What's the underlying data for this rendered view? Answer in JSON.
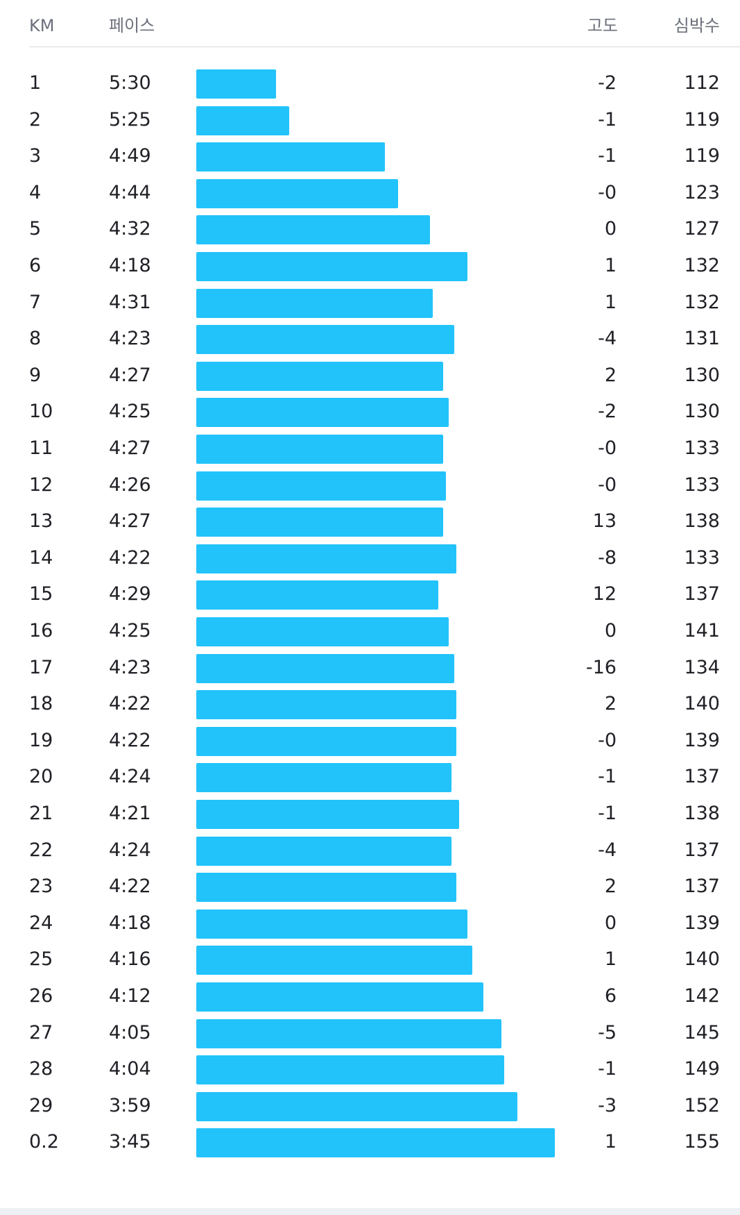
{
  "columns": {
    "km": "KM",
    "pace": "페이스",
    "elevation": "고도",
    "heart_rate": "심박수"
  },
  "bar_color": "#22c3fb",
  "splits": [
    {
      "km": "1",
      "pace": "5:30",
      "pace_sec": 330,
      "elevation": "-2",
      "heart_rate": "112"
    },
    {
      "km": "2",
      "pace": "5:25",
      "pace_sec": 325,
      "elevation": "-1",
      "heart_rate": "119"
    },
    {
      "km": "3",
      "pace": "4:49",
      "pace_sec": 289,
      "elevation": "-1",
      "heart_rate": "119"
    },
    {
      "km": "4",
      "pace": "4:44",
      "pace_sec": 284,
      "elevation": "-0",
      "heart_rate": "123"
    },
    {
      "km": "5",
      "pace": "4:32",
      "pace_sec": 272,
      "elevation": "0",
      "heart_rate": "127"
    },
    {
      "km": "6",
      "pace": "4:18",
      "pace_sec": 258,
      "elevation": "1",
      "heart_rate": "132"
    },
    {
      "km": "7",
      "pace": "4:31",
      "pace_sec": 271,
      "elevation": "1",
      "heart_rate": "132"
    },
    {
      "km": "8",
      "pace": "4:23",
      "pace_sec": 263,
      "elevation": "-4",
      "heart_rate": "131"
    },
    {
      "km": "9",
      "pace": "4:27",
      "pace_sec": 267,
      "elevation": "2",
      "heart_rate": "130"
    },
    {
      "km": "10",
      "pace": "4:25",
      "pace_sec": 265,
      "elevation": "-2",
      "heart_rate": "130"
    },
    {
      "km": "11",
      "pace": "4:27",
      "pace_sec": 267,
      "elevation": "-0",
      "heart_rate": "133"
    },
    {
      "km": "12",
      "pace": "4:26",
      "pace_sec": 266,
      "elevation": "-0",
      "heart_rate": "133"
    },
    {
      "km": "13",
      "pace": "4:27",
      "pace_sec": 267,
      "elevation": "13",
      "heart_rate": "138"
    },
    {
      "km": "14",
      "pace": "4:22",
      "pace_sec": 262,
      "elevation": "-8",
      "heart_rate": "133"
    },
    {
      "km": "15",
      "pace": "4:29",
      "pace_sec": 269,
      "elevation": "12",
      "heart_rate": "137"
    },
    {
      "km": "16",
      "pace": "4:25",
      "pace_sec": 265,
      "elevation": "0",
      "heart_rate": "141"
    },
    {
      "km": "17",
      "pace": "4:23",
      "pace_sec": 263,
      "elevation": "-16",
      "heart_rate": "134"
    },
    {
      "km": "18",
      "pace": "4:22",
      "pace_sec": 262,
      "elevation": "2",
      "heart_rate": "140"
    },
    {
      "km": "19",
      "pace": "4:22",
      "pace_sec": 262,
      "elevation": "-0",
      "heart_rate": "139"
    },
    {
      "km": "20",
      "pace": "4:24",
      "pace_sec": 264,
      "elevation": "-1",
      "heart_rate": "137"
    },
    {
      "km": "21",
      "pace": "4:21",
      "pace_sec": 261,
      "elevation": "-1",
      "heart_rate": "138"
    },
    {
      "km": "22",
      "pace": "4:24",
      "pace_sec": 264,
      "elevation": "-4",
      "heart_rate": "137"
    },
    {
      "km": "23",
      "pace": "4:22",
      "pace_sec": 262,
      "elevation": "2",
      "heart_rate": "137"
    },
    {
      "km": "24",
      "pace": "4:18",
      "pace_sec": 258,
      "elevation": "0",
      "heart_rate": "139"
    },
    {
      "km": "25",
      "pace": "4:16",
      "pace_sec": 256,
      "elevation": "1",
      "heart_rate": "140"
    },
    {
      "km": "26",
      "pace": "4:12",
      "pace_sec": 252,
      "elevation": "6",
      "heart_rate": "142"
    },
    {
      "km": "27",
      "pace": "4:05",
      "pace_sec": 245,
      "elevation": "-5",
      "heart_rate": "145"
    },
    {
      "km": "28",
      "pace": "4:04",
      "pace_sec": 244,
      "elevation": "-1",
      "heart_rate": "149"
    },
    {
      "km": "29",
      "pace": "3:59",
      "pace_sec": 239,
      "elevation": "-3",
      "heart_rate": "152"
    },
    {
      "km": "0.2",
      "pace": "3:45",
      "pace_sec": 225,
      "elevation": "1",
      "heart_rate": "155"
    }
  ]
}
